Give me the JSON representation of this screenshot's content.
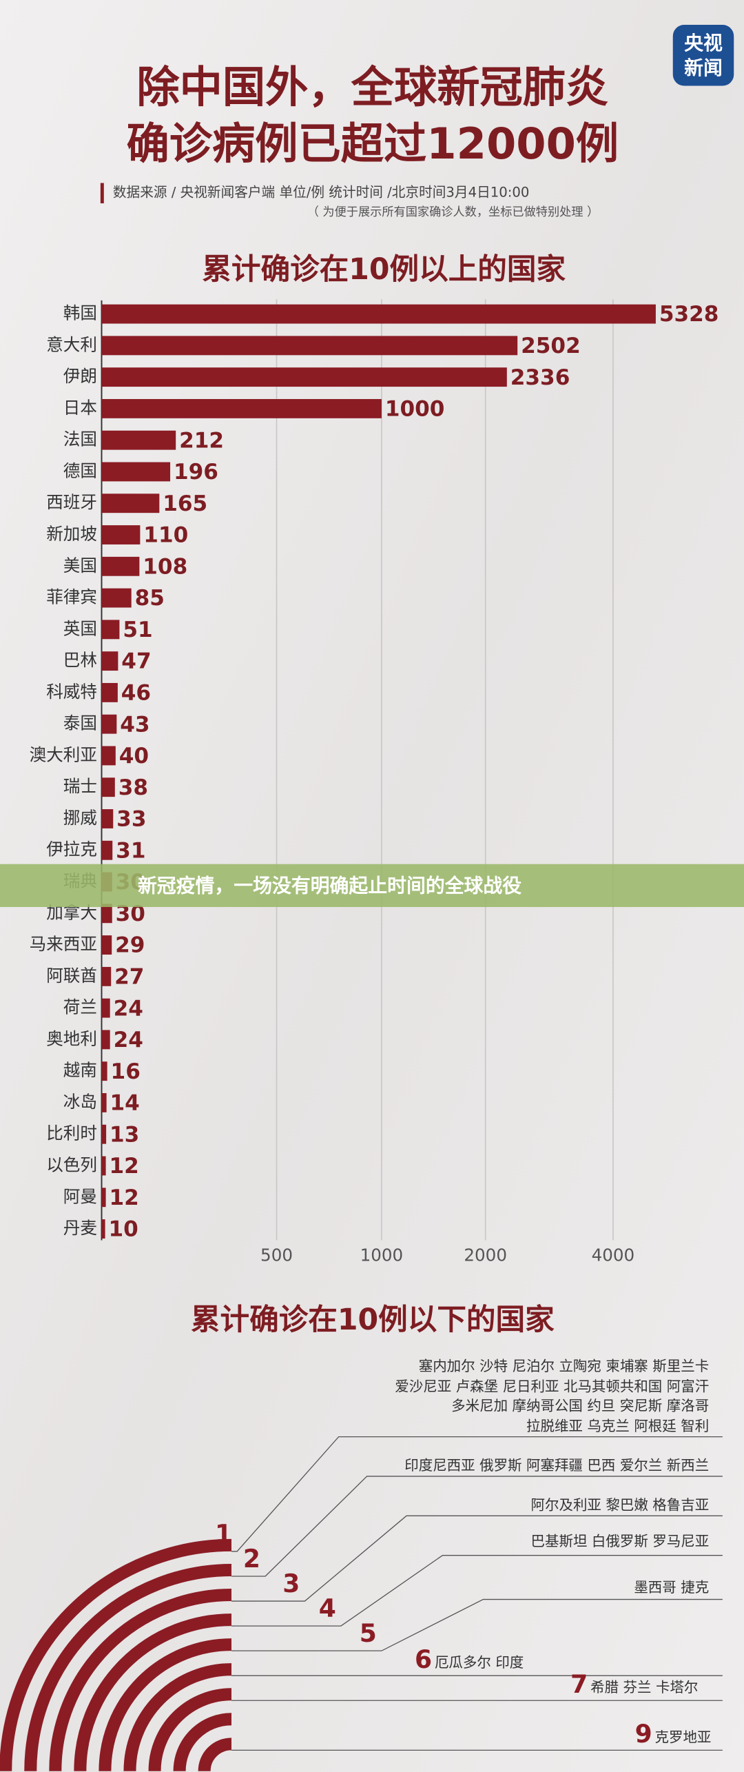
{
  "header": {
    "logo": [
      "央视",
      "新闻"
    ],
    "title": [
      "除中国外，全球新冠肺炎",
      "确诊病例已超过12000例"
    ],
    "source": "数据来源 / 央视新闻客户端  单位/例   统计时间 /北京时间3月4日10:00",
    "note": "（ 为便于展示所有国家确诊人数，坐标已做特别处理 ）"
  },
  "chart_data": {
    "type": "bar",
    "orientation": "horizontal",
    "title": "累计确诊在10例以上的国家",
    "categories": [
      "韩国",
      "意大利",
      "伊朗",
      "日本",
      "法国",
      "德国",
      "西班牙",
      "新加坡",
      "美国",
      "菲律宾",
      "英国",
      "巴林",
      "科威特",
      "泰国",
      "澳大利亚",
      "瑞士",
      "挪威",
      "伊拉克",
      "瑞典",
      "加拿大",
      "马来西亚",
      "阿联酋",
      "荷兰",
      "奥地利",
      "越南",
      "冰岛",
      "比利时",
      "以色列",
      "阿曼",
      "丹麦"
    ],
    "values": [
      5328,
      2502,
      2336,
      1000,
      212,
      196,
      165,
      110,
      108,
      85,
      51,
      47,
      46,
      43,
      40,
      38,
      33,
      31,
      30,
      30,
      29,
      27,
      24,
      24,
      16,
      14,
      13,
      12,
      12,
      10
    ],
    "color": "#8b1c24",
    "xlim": [
      0,
      6000
    ],
    "xticks": [
      500,
      1000,
      2000,
      4000
    ],
    "xscale": "segmented",
    "grid": true
  },
  "banner": "新冠疫情，一场没有明确起止时间的全球战役",
  "groups_section": {
    "title": "累计确诊在10例以下的国家",
    "groups": [
      {
        "count": 1,
        "lines": [
          "塞内加尔  沙特  尼泊尔  立陶宛  柬埔寨  斯里兰卡",
          "爱沙尼亚  卢森堡  尼日利亚  北马其顿共和国  阿富汗",
          "多米尼加  摩纳哥公国  约旦  突尼斯  摩洛哥",
          "拉脱维亚  乌克兰  阿根廷  智利"
        ]
      },
      {
        "count": 2,
        "lines": [
          "印度尼西亚  俄罗斯  阿塞拜疆  巴西  爱尔兰  新西兰"
        ]
      },
      {
        "count": 3,
        "lines": [
          "阿尔及利亚  黎巴嫩  格鲁吉亚"
        ]
      },
      {
        "count": 4,
        "lines": [
          "巴基斯坦  白俄罗斯  罗马尼亚"
        ]
      },
      {
        "count": 5,
        "lines": [
          "墨西哥  捷克"
        ]
      },
      {
        "count": 6,
        "lines": [
          "厄瓜多尔  印度"
        ]
      },
      {
        "count": 7,
        "lines": [
          "希腊  芬兰  卡塔尔"
        ]
      },
      {
        "count": 9,
        "lines": [
          "克罗地亚"
        ]
      }
    ]
  }
}
